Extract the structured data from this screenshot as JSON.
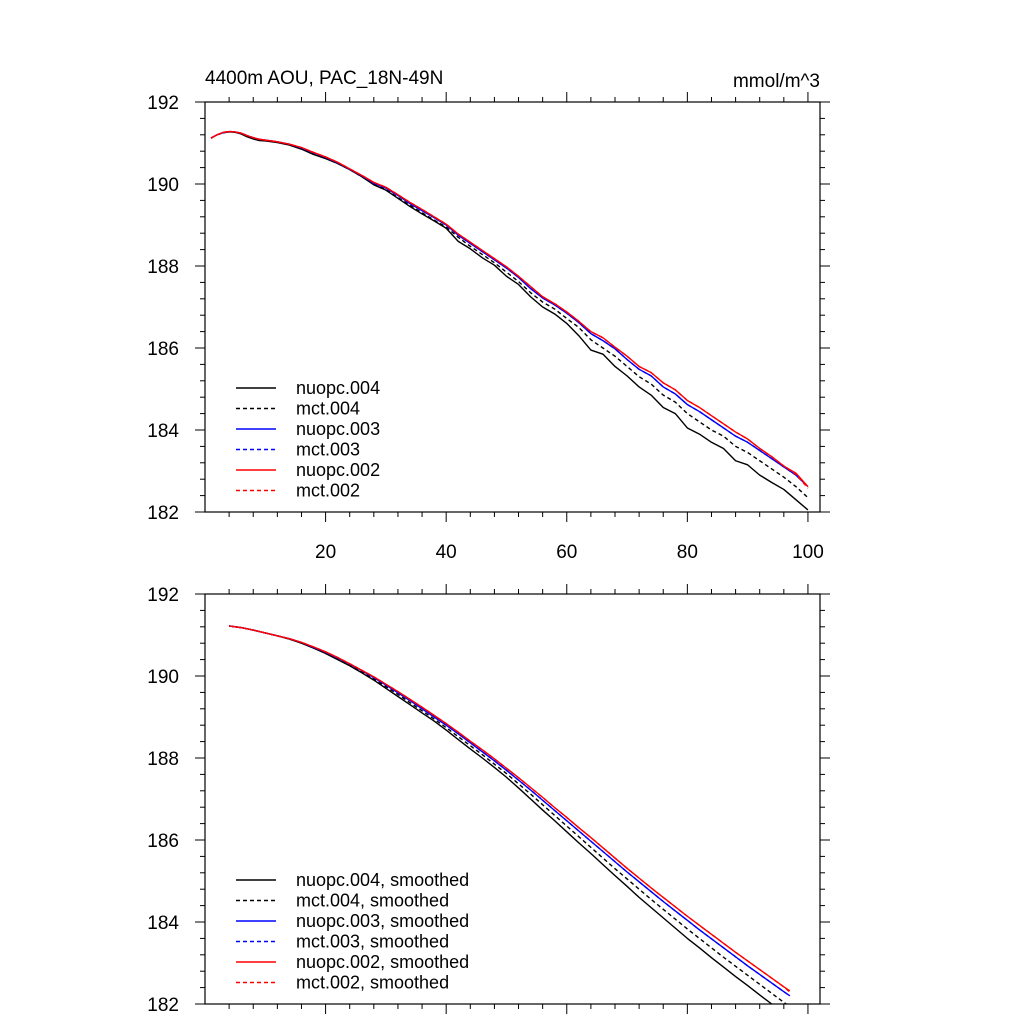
{
  "figure": {
    "title_left": "4400m AOU, PAC_18N-49N",
    "title_right": "mmol/m^3"
  },
  "chart_data": [
    {
      "type": "line",
      "title": "4400m AOU, PAC_18N-49N",
      "units": "mmol/m^3",
      "xlim": [
        0,
        102
      ],
      "ylim": [
        182,
        192
      ],
      "xticks": [
        20,
        40,
        60,
        80,
        100
      ],
      "yticks": [
        182,
        184,
        186,
        188,
        190,
        192
      ],
      "legend": "lower-left",
      "grid": false,
      "x": [
        1,
        2,
        3,
        4,
        5,
        6,
        7,
        8,
        9,
        10,
        12,
        14,
        16,
        18,
        20,
        22,
        24,
        26,
        28,
        30,
        32,
        34,
        36,
        38,
        40,
        42,
        44,
        46,
        48,
        50,
        52,
        54,
        56,
        58,
        60,
        62,
        64,
        66,
        68,
        70,
        72,
        74,
        76,
        78,
        80,
        82,
        84,
        86,
        88,
        90,
        92,
        94,
        96,
        98,
        100
      ],
      "series": [
        {
          "name": "nuopc.004",
          "color": "#000000",
          "dash": false,
          "values": [
            191.12,
            191.2,
            191.25,
            191.27,
            191.26,
            191.22,
            191.15,
            191.1,
            191.06,
            191.05,
            191.01,
            190.95,
            190.85,
            190.72,
            190.62,
            190.5,
            190.35,
            190.18,
            189.98,
            189.85,
            189.65,
            189.45,
            189.27,
            189.1,
            188.92,
            188.6,
            188.42,
            188.2,
            188.02,
            187.75,
            187.55,
            187.25,
            187.0,
            186.83,
            186.6,
            186.3,
            185.95,
            185.85,
            185.55,
            185.32,
            185.05,
            184.85,
            184.55,
            184.4,
            184.05,
            183.9,
            183.7,
            183.55,
            183.25,
            183.15,
            182.9,
            182.72,
            182.55,
            182.3,
            182.05
          ]
        },
        {
          "name": "mct.004",
          "color": "#000000",
          "dash": true,
          "values": [
            191.12,
            191.2,
            191.25,
            191.28,
            191.27,
            191.23,
            191.17,
            191.12,
            191.08,
            191.06,
            191.02,
            190.96,
            190.86,
            190.74,
            190.63,
            190.5,
            190.35,
            190.18,
            190.0,
            189.86,
            189.67,
            189.48,
            189.3,
            189.12,
            188.95,
            188.7,
            188.48,
            188.28,
            188.08,
            187.85,
            187.62,
            187.35,
            187.12,
            186.95,
            186.72,
            186.5,
            186.2,
            186.0,
            185.8,
            185.55,
            185.3,
            185.12,
            184.85,
            184.68,
            184.4,
            184.2,
            184.0,
            183.85,
            183.6,
            183.45,
            183.25,
            183.05,
            182.85,
            182.62,
            182.35
          ]
        },
        {
          "name": "nuopc.003",
          "color": "#0000ff",
          "dash": false,
          "values": [
            191.12,
            191.2,
            191.25,
            191.28,
            191.27,
            191.24,
            191.18,
            191.13,
            191.09,
            191.07,
            191.03,
            190.97,
            190.88,
            190.76,
            190.65,
            190.52,
            190.36,
            190.2,
            190.02,
            189.9,
            189.72,
            189.52,
            189.35,
            189.18,
            189.0,
            188.75,
            188.55,
            188.35,
            188.15,
            187.95,
            187.72,
            187.45,
            187.22,
            187.05,
            186.85,
            186.62,
            186.35,
            186.18,
            185.98,
            185.72,
            185.48,
            185.32,
            185.05,
            184.88,
            184.62,
            184.45,
            184.25,
            184.05,
            183.85,
            183.7,
            183.5,
            183.3,
            183.1,
            182.9,
            182.62
          ]
        },
        {
          "name": "mct.003",
          "color": "#0000ff",
          "dash": true,
          "values": [
            191.12,
            191.2,
            191.25,
            191.28,
            191.27,
            191.24,
            191.18,
            191.13,
            191.09,
            191.07,
            191.03,
            190.97,
            190.88,
            190.76,
            190.65,
            190.52,
            190.36,
            190.2,
            190.02,
            189.9,
            189.72,
            189.52,
            189.35,
            189.18,
            189.0,
            188.75,
            188.55,
            188.35,
            188.15,
            187.95,
            187.72,
            187.45,
            187.22,
            187.05,
            186.85,
            186.62,
            186.35,
            186.18,
            185.98,
            185.72,
            185.48,
            185.32,
            185.05,
            184.88,
            184.62,
            184.45,
            184.25,
            184.05,
            183.85,
            183.7,
            183.5,
            183.3,
            183.1,
            182.9,
            182.62
          ]
        },
        {
          "name": "nuopc.002",
          "color": "#ff0000",
          "dash": false,
          "values": [
            191.12,
            191.2,
            191.26,
            191.28,
            191.27,
            191.24,
            191.18,
            191.13,
            191.09,
            191.07,
            191.03,
            190.97,
            190.89,
            190.77,
            190.66,
            190.53,
            190.37,
            190.21,
            190.04,
            189.92,
            189.74,
            189.55,
            189.38,
            189.2,
            189.02,
            188.78,
            188.58,
            188.38,
            188.18,
            187.98,
            187.75,
            187.5,
            187.25,
            187.08,
            186.88,
            186.65,
            186.4,
            186.25,
            186.02,
            185.8,
            185.55,
            185.4,
            185.15,
            184.98,
            184.72,
            184.55,
            184.35,
            184.15,
            183.95,
            183.78,
            183.55,
            183.35,
            183.12,
            182.95,
            182.62
          ]
        },
        {
          "name": "mct.002",
          "color": "#ff0000",
          "dash": true,
          "values": [
            191.12,
            191.2,
            191.26,
            191.28,
            191.27,
            191.24,
            191.18,
            191.13,
            191.09,
            191.07,
            191.03,
            190.97,
            190.89,
            190.77,
            190.66,
            190.53,
            190.37,
            190.21,
            190.04,
            189.92,
            189.74,
            189.55,
            189.38,
            189.2,
            189.02,
            188.78,
            188.58,
            188.38,
            188.18,
            187.98,
            187.75,
            187.5,
            187.25,
            187.08,
            186.88,
            186.65,
            186.4,
            186.25,
            186.02,
            185.8,
            185.55,
            185.4,
            185.15,
            184.98,
            184.72,
            184.55,
            184.35,
            184.15,
            183.95,
            183.78,
            183.55,
            183.35,
            183.12,
            182.92,
            182.58
          ]
        }
      ]
    },
    {
      "type": "line",
      "xlim": [
        0,
        102
      ],
      "ylim": [
        182,
        192
      ],
      "yticks": [
        182,
        184,
        186,
        188,
        190,
        192
      ],
      "legend": "lower-left",
      "grid": false,
      "x": [
        4,
        6,
        8,
        10,
        12,
        14,
        16,
        18,
        20,
        22,
        24,
        26,
        28,
        30,
        32,
        34,
        36,
        38,
        40,
        42,
        44,
        46,
        48,
        50,
        52,
        54,
        56,
        58,
        60,
        62,
        64,
        66,
        68,
        70,
        72,
        74,
        76,
        78,
        80,
        82,
        84,
        86,
        88,
        90,
        92,
        94,
        96,
        97
      ],
      "series": [
        {
          "name": "nuopc.004, smoothed",
          "color": "#000000",
          "dash": false,
          "values": [
            191.22,
            191.18,
            191.12,
            191.05,
            190.98,
            190.9,
            190.8,
            190.68,
            190.55,
            190.4,
            190.25,
            190.08,
            189.9,
            189.7,
            189.5,
            189.3,
            189.1,
            188.9,
            188.68,
            188.45,
            188.22,
            188.0,
            187.77,
            187.53,
            187.27,
            187.0,
            186.73,
            186.47,
            186.2,
            185.93,
            185.67,
            185.4,
            185.13,
            184.87,
            184.6,
            184.35,
            184.1,
            183.85,
            183.6,
            183.37,
            183.13,
            182.9,
            182.67,
            182.45,
            182.22,
            182.0,
            181.78,
            181.68
          ]
        },
        {
          "name": "mct.004, smoothed",
          "color": "#000000",
          "dash": true,
          "values": [
            191.22,
            191.18,
            191.12,
            191.05,
            190.98,
            190.9,
            190.81,
            190.69,
            190.56,
            190.42,
            190.27,
            190.1,
            189.93,
            189.74,
            189.55,
            189.35,
            189.15,
            188.95,
            188.74,
            188.52,
            188.3,
            188.08,
            187.85,
            187.62,
            187.37,
            187.12,
            186.86,
            186.6,
            186.34,
            186.08,
            185.82,
            185.56,
            185.3,
            185.05,
            184.8,
            184.55,
            184.31,
            184.07,
            183.83,
            183.6,
            183.37,
            183.14,
            182.92,
            182.7,
            182.48,
            182.26,
            182.04,
            181.94
          ]
        },
        {
          "name": "nuopc.003, smoothed",
          "color": "#0000ff",
          "dash": false,
          "values": [
            191.22,
            191.18,
            191.12,
            191.05,
            190.98,
            190.91,
            190.82,
            190.7,
            190.58,
            190.44,
            190.29,
            190.13,
            189.96,
            189.78,
            189.59,
            189.4,
            189.2,
            189.0,
            188.8,
            188.59,
            188.37,
            188.15,
            187.93,
            187.7,
            187.46,
            187.22,
            186.97,
            186.72,
            186.47,
            186.22,
            185.97,
            185.72,
            185.47,
            185.22,
            184.98,
            184.74,
            184.5,
            184.27,
            184.04,
            183.81,
            183.59,
            183.37,
            183.15,
            182.93,
            182.72,
            182.51,
            182.3,
            182.2
          ]
        },
        {
          "name": "mct.003, smoothed",
          "color": "#0000ff",
          "dash": true,
          "values": [
            191.22,
            191.18,
            191.12,
            191.05,
            190.98,
            190.91,
            190.82,
            190.7,
            190.58,
            190.44,
            190.29,
            190.13,
            189.96,
            189.78,
            189.59,
            189.4,
            189.2,
            189.0,
            188.8,
            188.59,
            188.37,
            188.15,
            187.93,
            187.7,
            187.46,
            187.22,
            186.97,
            186.72,
            186.47,
            186.22,
            185.97,
            185.72,
            185.47,
            185.22,
            184.98,
            184.74,
            184.5,
            184.27,
            184.04,
            183.81,
            183.59,
            183.37,
            183.15,
            182.93,
            182.72,
            182.51,
            182.3,
            182.2
          ]
        },
        {
          "name": "nuopc.002, smoothed",
          "color": "#ff0000",
          "dash": false,
          "values": [
            191.22,
            191.18,
            191.12,
            191.05,
            190.98,
            190.91,
            190.82,
            190.71,
            190.59,
            190.45,
            190.3,
            190.14,
            189.98,
            189.8,
            189.62,
            189.43,
            189.24,
            189.04,
            188.84,
            188.63,
            188.41,
            188.2,
            187.98,
            187.75,
            187.52,
            187.28,
            187.04,
            186.79,
            186.55,
            186.3,
            186.06,
            185.81,
            185.56,
            185.31,
            185.07,
            184.83,
            184.6,
            184.37,
            184.14,
            183.92,
            183.7,
            183.48,
            183.26,
            183.05,
            182.84,
            182.63,
            182.42,
            182.32
          ]
        },
        {
          "name": "mct.002, smoothed",
          "color": "#ff0000",
          "dash": true,
          "values": [
            191.22,
            191.18,
            191.12,
            191.05,
            190.98,
            190.91,
            190.82,
            190.71,
            190.59,
            190.45,
            190.3,
            190.14,
            189.98,
            189.8,
            189.62,
            189.43,
            189.24,
            189.04,
            188.84,
            188.63,
            188.41,
            188.2,
            187.98,
            187.75,
            187.52,
            187.28,
            187.04,
            186.79,
            186.55,
            186.3,
            186.06,
            185.81,
            185.56,
            185.31,
            185.07,
            184.83,
            184.6,
            184.37,
            184.14,
            183.92,
            183.7,
            183.48,
            183.26,
            183.05,
            182.84,
            182.63,
            182.42,
            182.29
          ]
        }
      ]
    }
  ]
}
